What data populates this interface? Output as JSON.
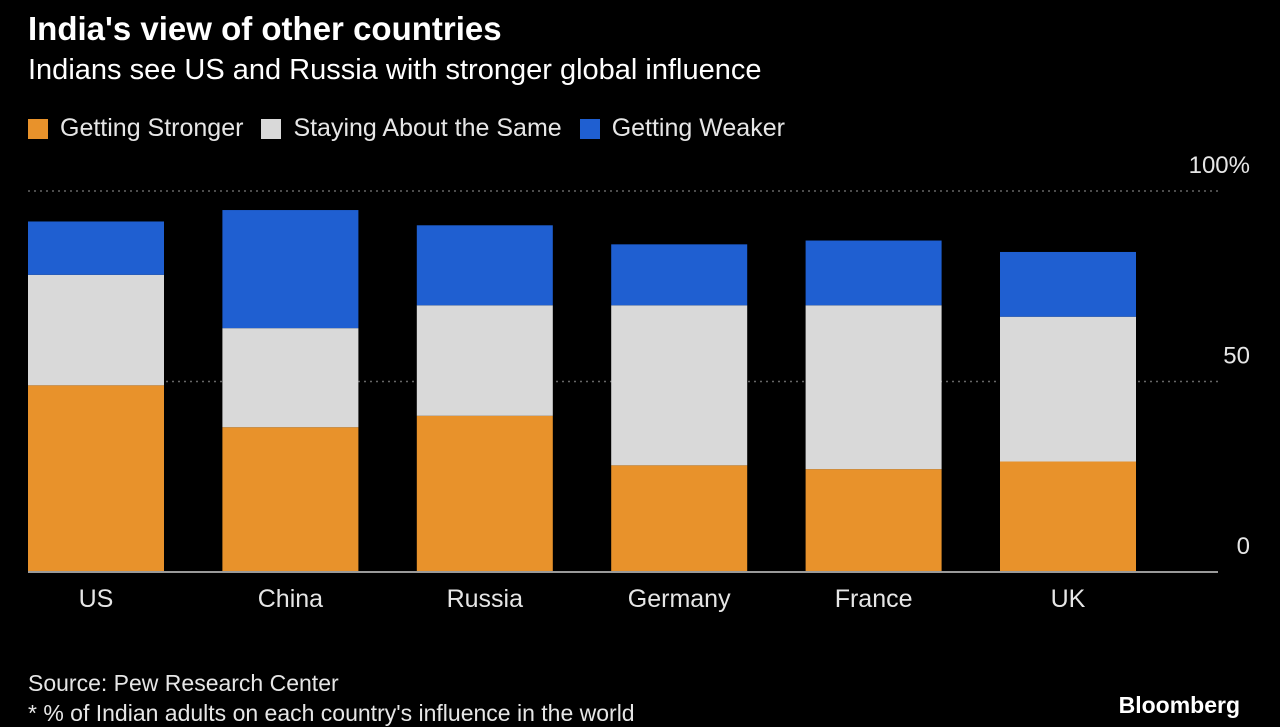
{
  "header": {
    "title": "India's view of other countries",
    "subtitle": "Indians see US and Russia with stronger global influence"
  },
  "footer": {
    "source": "Source: Pew Research Center",
    "note": "* % of Indian adults on each country's influence in the world",
    "brand": "Bloomberg"
  },
  "colors": {
    "background": "#000000",
    "stronger": "#e8922b",
    "same": "#d9d9d9",
    "weaker": "#1f5fd1",
    "gridline": "#666666",
    "baseline": "#9a9a9a"
  },
  "chart_data": {
    "type": "bar",
    "stacked": true,
    "categories": [
      "US",
      "China",
      "Russia",
      "Germany",
      "France",
      "UK"
    ],
    "series": [
      {
        "name": "Getting Stronger",
        "values": [
          49,
          38,
          41,
          28,
          27,
          29
        ]
      },
      {
        "name": "Staying About the Same",
        "values": [
          29,
          26,
          29,
          42,
          43,
          38
        ]
      },
      {
        "name": "Getting Weaker",
        "values": [
          14,
          31,
          21,
          16,
          17,
          17
        ]
      }
    ],
    "ylim": [
      0,
      100
    ],
    "yticks": [
      {
        "value": 0,
        "label": "0"
      },
      {
        "value": 50,
        "label": "50"
      },
      {
        "value": 100,
        "label": "100%"
      }
    ],
    "legend_position": "top-left",
    "grid": true
  }
}
